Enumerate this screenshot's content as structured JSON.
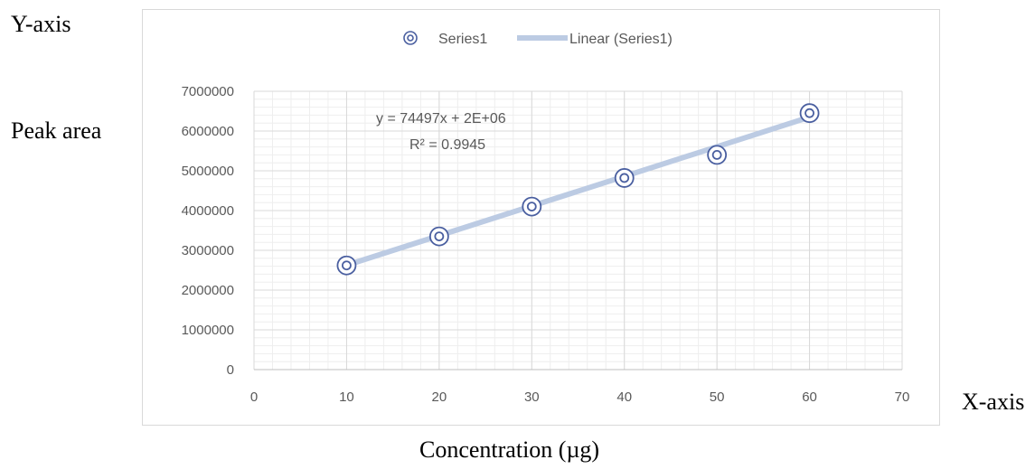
{
  "page": {
    "y_axis_caption": "Y-axis",
    "y_axis_name": "Peak area",
    "x_axis_caption": "X-axis",
    "x_axis_name": "Concentration (µg)"
  },
  "chart_data": {
    "type": "scatter",
    "title": "",
    "xlabel": "Concentration (µg)",
    "ylabel": "Peak area",
    "xlim": [
      0,
      70
    ],
    "ylim": [
      0,
      7000000
    ],
    "x_ticks": [
      "0",
      "10",
      "20",
      "30",
      "40",
      "50",
      "60",
      "70"
    ],
    "y_ticks": [
      "0",
      "1000000",
      "2000000",
      "3000000",
      "4000000",
      "5000000",
      "6000000",
      "7000000"
    ],
    "grid": true,
    "minor_grid": true,
    "legend_position": "top",
    "series": [
      {
        "name": "Series1",
        "x": [
          10,
          20,
          30,
          40,
          50,
          60
        ],
        "y": [
          2620000,
          3350000,
          4100000,
          4820000,
          5400000,
          6450000
        ],
        "color": "#4a5fa0"
      }
    ],
    "trendline": {
      "name": "Linear (Series1)",
      "slope": 74497,
      "intercept": 1880000,
      "x_range": [
        10,
        60
      ],
      "color": "#bccbe3"
    },
    "annotations": {
      "equation": "y = 74497x  + 2E+06",
      "r_squared": "R² = 0.9945"
    }
  }
}
